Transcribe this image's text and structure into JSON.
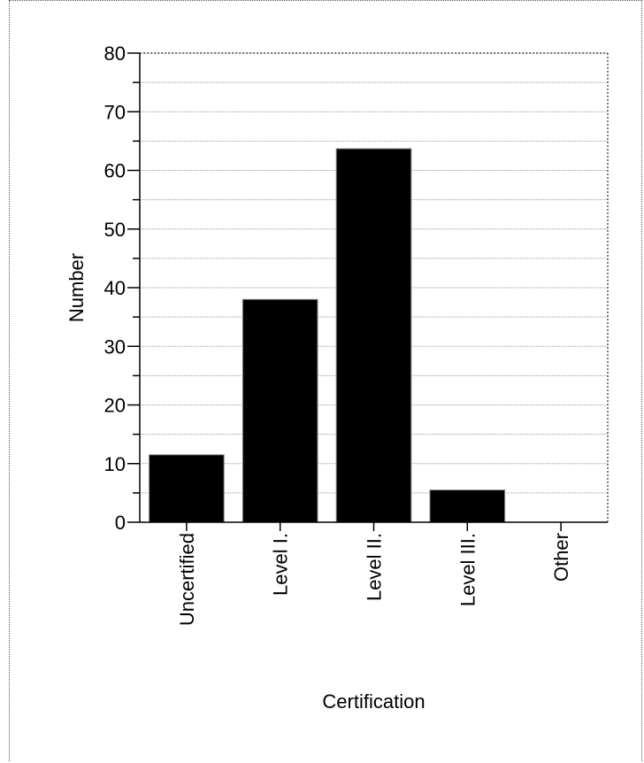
{
  "chart_data": {
    "type": "bar",
    "title": "",
    "xlabel": "Certification",
    "ylabel": "Number",
    "categories": [
      "Uncertified",
      "Level I.",
      "Level II.",
      "Level III.",
      "Other"
    ],
    "values": [
      11.5,
      38,
      63.7,
      5.5,
      0
    ],
    "ylim": [
      0,
      80
    ],
    "yticks": [
      0,
      10,
      20,
      30,
      40,
      50,
      60,
      70,
      80
    ],
    "ytick_labels": [
      "0",
      "10",
      "20",
      "30",
      "40",
      "50",
      "60",
      "70",
      "80"
    ],
    "y_minor_step": 5,
    "grid": true,
    "grid_style": "dotted-horizontal",
    "legend": "none",
    "bar_color": "#000000",
    "grid_color": "#999999"
  }
}
